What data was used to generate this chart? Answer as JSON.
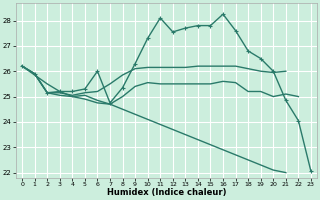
{
  "xlabel": "Humidex (Indice chaleur)",
  "bg_color": "#cceedd",
  "grid_color": "#ffffff",
  "line_color": "#2a7a6a",
  "xlim": [
    -0.5,
    23.5
  ],
  "ylim": [
    21.8,
    28.7
  ],
  "xticks": [
    0,
    1,
    2,
    3,
    4,
    5,
    6,
    7,
    8,
    9,
    10,
    11,
    12,
    13,
    14,
    15,
    16,
    17,
    18,
    19,
    20,
    21,
    22,
    23
  ],
  "yticks": [
    22,
    23,
    24,
    25,
    26,
    27,
    28
  ],
  "s1": [
    26.2,
    25.9,
    25.15,
    25.15,
    25.05,
    25.15,
    25.2,
    25.5,
    25.85,
    26.1,
    26.15,
    26.15,
    26.15,
    26.15,
    26.2,
    26.2,
    26.2,
    26.2,
    26.1,
    26.0,
    25.95,
    26.0,
    null,
    null
  ],
  "s2": [
    26.2,
    25.9,
    25.15,
    25.05,
    25.0,
    25.05,
    24.85,
    24.7,
    25.0,
    25.4,
    25.55,
    25.5,
    25.5,
    25.5,
    25.5,
    25.5,
    25.6,
    25.55,
    25.2,
    25.2,
    25.0,
    25.1,
    25.0,
    null
  ],
  "s3": [
    26.2,
    25.85,
    25.5,
    25.2,
    25.0,
    24.9,
    24.75,
    24.7,
    24.5,
    24.3,
    24.1,
    23.9,
    23.7,
    23.5,
    23.3,
    23.1,
    22.9,
    22.7,
    22.5,
    22.3,
    22.1,
    22.0,
    null,
    null
  ],
  "s4": [
    26.2,
    25.9,
    25.15,
    25.2,
    25.2,
    25.3,
    26.0,
    24.75,
    25.35,
    26.3,
    27.3,
    28.1,
    27.55,
    27.7,
    27.8,
    27.8,
    28.25,
    27.6,
    26.8,
    26.5,
    26.0,
    24.85,
    24.05,
    22.05
  ]
}
